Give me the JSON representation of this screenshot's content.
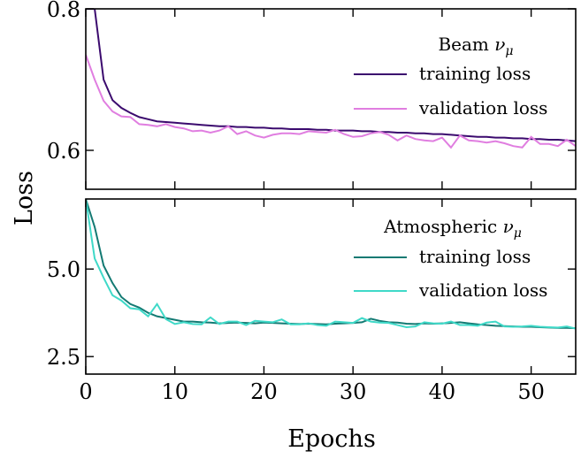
{
  "figure": {
    "ylabel": "Loss",
    "xlabel": "Epochs"
  },
  "chart_data": [
    {
      "type": "line",
      "legend_title": "Beam",
      "legend_symbol": "ν",
      "legend_subscript": "μ",
      "legend_placement": "top-right",
      "xlim": [
        0,
        55
      ],
      "ylim": [
        0.545,
        0.8
      ],
      "yticks": [
        0.6,
        0.8
      ],
      "ytick_labels": [
        "0.6",
        "0.8"
      ],
      "grid": false,
      "x": [
        0,
        1,
        2,
        3,
        4,
        5,
        6,
        7,
        8,
        9,
        10,
        11,
        12,
        13,
        14,
        15,
        16,
        17,
        18,
        19,
        20,
        21,
        22,
        23,
        24,
        25,
        26,
        27,
        28,
        29,
        30,
        31,
        32,
        33,
        34,
        35,
        36,
        37,
        38,
        39,
        40,
        41,
        42,
        43,
        44,
        45,
        46,
        47,
        48,
        49,
        50,
        51,
        52,
        53,
        54,
        55
      ],
      "series": [
        {
          "name": "training loss",
          "color": "#3b0a6e",
          "values": [
            0.8,
            0.8,
            0.7,
            0.671,
            0.66,
            0.653,
            0.647,
            0.644,
            0.641,
            0.64,
            0.639,
            0.638,
            0.637,
            0.636,
            0.635,
            0.634,
            0.634,
            0.633,
            0.633,
            0.632,
            0.632,
            0.631,
            0.631,
            0.63,
            0.63,
            0.63,
            0.629,
            0.629,
            0.628,
            0.628,
            0.628,
            0.627,
            0.627,
            0.626,
            0.626,
            0.625,
            0.625,
            0.624,
            0.624,
            0.623,
            0.623,
            0.622,
            0.621,
            0.62,
            0.619,
            0.619,
            0.618,
            0.618,
            0.617,
            0.617,
            0.616,
            0.616,
            0.615,
            0.615,
            0.614,
            0.613
          ]
        },
        {
          "name": "validation loss",
          "color": "#e07ee0",
          "values": [
            0.735,
            0.7,
            0.67,
            0.655,
            0.648,
            0.647,
            0.637,
            0.636,
            0.634,
            0.637,
            0.633,
            0.631,
            0.627,
            0.628,
            0.625,
            0.628,
            0.634,
            0.623,
            0.627,
            0.621,
            0.618,
            0.622,
            0.624,
            0.624,
            0.623,
            0.627,
            0.626,
            0.625,
            0.629,
            0.623,
            0.619,
            0.62,
            0.624,
            0.626,
            0.622,
            0.614,
            0.621,
            0.616,
            0.614,
            0.613,
            0.618,
            0.604,
            0.621,
            0.614,
            0.613,
            0.611,
            0.613,
            0.61,
            0.606,
            0.604,
            0.619,
            0.609,
            0.609,
            0.606,
            0.615,
            0.606
          ]
        }
      ]
    },
    {
      "type": "line",
      "legend_title": "Atmospheric",
      "legend_symbol": "ν",
      "legend_subscript": "μ",
      "legend_placement": "top-right",
      "xlim": [
        0,
        55
      ],
      "ylim": [
        2.0,
        7.0
      ],
      "yticks": [
        2.5,
        5.0
      ],
      "ytick_labels": [
        "2.5",
        "5.0"
      ],
      "grid": false,
      "x": [
        0,
        1,
        2,
        3,
        4,
        5,
        6,
        7,
        8,
        9,
        10,
        11,
        12,
        13,
        14,
        15,
        16,
        17,
        18,
        19,
        20,
        21,
        22,
        23,
        24,
        25,
        26,
        27,
        28,
        29,
        30,
        31,
        32,
        33,
        34,
        35,
        36,
        37,
        38,
        39,
        40,
        41,
        42,
        43,
        44,
        45,
        46,
        47,
        48,
        49,
        50,
        51,
        52,
        53,
        54,
        55
      ],
      "series": [
        {
          "name": "training loss",
          "color": "#137a73",
          "values": [
            7.0,
            6.2,
            5.1,
            4.6,
            4.2,
            4.0,
            3.9,
            3.75,
            3.65,
            3.6,
            3.55,
            3.5,
            3.5,
            3.48,
            3.47,
            3.45,
            3.46,
            3.47,
            3.46,
            3.45,
            3.47,
            3.46,
            3.45,
            3.44,
            3.43,
            3.44,
            3.43,
            3.42,
            3.44,
            3.45,
            3.46,
            3.48,
            3.58,
            3.52,
            3.48,
            3.47,
            3.44,
            3.43,
            3.45,
            3.44,
            3.45,
            3.46,
            3.48,
            3.45,
            3.42,
            3.4,
            3.38,
            3.37,
            3.36,
            3.35,
            3.35,
            3.34,
            3.33,
            3.32,
            3.32,
            3.31
          ]
        },
        {
          "name": "validation loss",
          "color": "#3fd9c8",
          "values": [
            7.0,
            5.3,
            4.75,
            4.25,
            4.1,
            3.88,
            3.85,
            3.65,
            4.0,
            3.57,
            3.43,
            3.48,
            3.43,
            3.42,
            3.62,
            3.43,
            3.5,
            3.5,
            3.4,
            3.52,
            3.5,
            3.48,
            3.56,
            3.42,
            3.42,
            3.45,
            3.4,
            3.38,
            3.5,
            3.48,
            3.46,
            3.6,
            3.5,
            3.47,
            3.46,
            3.4,
            3.34,
            3.36,
            3.48,
            3.45,
            3.44,
            3.5,
            3.4,
            3.4,
            3.38,
            3.47,
            3.5,
            3.36,
            3.35,
            3.36,
            3.38,
            3.35,
            3.34,
            3.33,
            3.36,
            3.3
          ]
        }
      ]
    }
  ],
  "xaxis": {
    "ticks": [
      0,
      10,
      20,
      30,
      40,
      50
    ],
    "tick_labels": [
      "0",
      "10",
      "20",
      "30",
      "40",
      "50"
    ]
  }
}
